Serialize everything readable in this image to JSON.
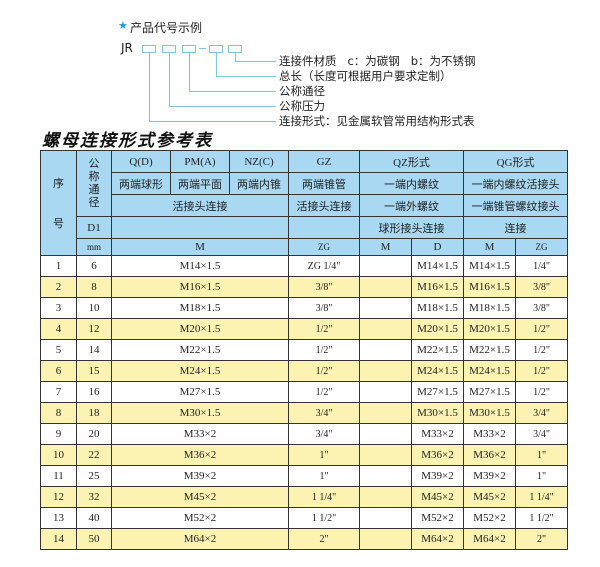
{
  "code_example": {
    "title": "产品代号示例",
    "prefix": "JR",
    "separator_icon": "dash",
    "labels": [
      "连接件材质   c：为碳钢   b：为不锈钢",
      "总长（长度可根据用户要求定制）",
      "公称通径",
      "公称压力",
      "连接形式：见金属软管常用结构形式表"
    ]
  },
  "table_title": "螺母连接形式参考表",
  "header": {
    "seq_top": "序",
    "seq_bottom": "号",
    "nominal": "公称通径",
    "d1": "D1",
    "mm": "mm",
    "types": [
      "Q(D)",
      "PM(A)",
      "NZ(C)",
      "GZ",
      "QZ形式",
      "QG形式"
    ],
    "shapes": [
      "两端球形",
      "两端平面",
      "两端内锥",
      "两端锥管",
      "一端内螺纹",
      "一端内螺纹活接头"
    ],
    "conn_a": "活接头连接",
    "conn_gz": "活接头连接",
    "conn_qz": "一端外螺纹",
    "conn_qg": "一端锥管螺纹接头",
    "conn_qz2": "球形接头连接",
    "conn_qg2": "连接",
    "units": [
      "M",
      "ZG",
      "M",
      "D",
      "M",
      "ZG"
    ]
  },
  "rows": [
    {
      "no": "1",
      "d1": "6",
      "m": "M14×1.5",
      "zg": "ZG 1/4\"",
      "qz_m": "",
      "qz_d": "M14×1.5",
      "qg_m": "M14×1.5",
      "qg_zg": "1/4\""
    },
    {
      "no": "2",
      "d1": "8",
      "m": "M16×1.5",
      "zg": "3/8\"",
      "qz_m": "",
      "qz_d": "M16×1.5",
      "qg_m": "M16×1.5",
      "qg_zg": "3/8\""
    },
    {
      "no": "3",
      "d1": "10",
      "m": "M18×1.5",
      "zg": "3/8\"",
      "qz_m": "",
      "qz_d": "M18×1.5",
      "qg_m": "M18×1.5",
      "qg_zg": "3/8\""
    },
    {
      "no": "4",
      "d1": "12",
      "m": "M20×1.5",
      "zg": "1/2\"",
      "qz_m": "",
      "qz_d": "M20×1.5",
      "qg_m": "M20×1.5",
      "qg_zg": "1/2\""
    },
    {
      "no": "5",
      "d1": "14",
      "m": "M22×1.5",
      "zg": "1/2\"",
      "qz_m": "",
      "qz_d": "M22×1.5",
      "qg_m": "M22×1.5",
      "qg_zg": "1/2\""
    },
    {
      "no": "6",
      "d1": "15",
      "m": "M24×1.5",
      "zg": "1/2\"",
      "qz_m": "",
      "qz_d": "M24×1.5",
      "qg_m": "M24×1.5",
      "qg_zg": "1/2\""
    },
    {
      "no": "7",
      "d1": "16",
      "m": "M27×1.5",
      "zg": "1/2\"",
      "qz_m": "",
      "qz_d": "M27×1.5",
      "qg_m": "M27×1.5",
      "qg_zg": "1/2\""
    },
    {
      "no": "8",
      "d1": "18",
      "m": "M30×1.5",
      "zg": "3/4\"",
      "qz_m": "",
      "qz_d": "M30×1.5",
      "qg_m": "M30×1.5",
      "qg_zg": "3/4\""
    },
    {
      "no": "9",
      "d1": "20",
      "m": "M33×2",
      "zg": "3/4\"",
      "qz_m": "",
      "qz_d": "M33×2",
      "qg_m": "M33×2",
      "qg_zg": "3/4\""
    },
    {
      "no": "10",
      "d1": "22",
      "m": "M36×2",
      "zg": "1\"",
      "qz_m": "",
      "qz_d": "M36×2",
      "qg_m": "M36×2",
      "qg_zg": "1\""
    },
    {
      "no": "11",
      "d1": "25",
      "m": "M39×2",
      "zg": "1\"",
      "qz_m": "",
      "qz_d": "M39×2",
      "qg_m": "M39×2",
      "qg_zg": "1\""
    },
    {
      "no": "12",
      "d1": "32",
      "m": "M45×2",
      "zg": "1 1/4\"",
      "qz_m": "",
      "qz_d": "M45×2",
      "qg_m": "M45×2",
      "qg_zg": "1 1/4\""
    },
    {
      "no": "13",
      "d1": "40",
      "m": "M52×2",
      "zg": "1 1/2\"",
      "qz_m": "",
      "qz_d": "M52×2",
      "qg_m": "M52×2",
      "qg_zg": "1 1/2\""
    },
    {
      "no": "14",
      "d1": "50",
      "m": "M64×2",
      "zg": "2\"",
      "qz_m": "",
      "qz_d": "M64×2",
      "qg_m": "M64×2",
      "qg_zg": "2\""
    }
  ],
  "colors": {
    "header_bg": "#a8d8f2",
    "alt_row_bg": "#fcf2b2",
    "accent": "#1a9ed8",
    "leader_line": "#7cc6e4"
  }
}
